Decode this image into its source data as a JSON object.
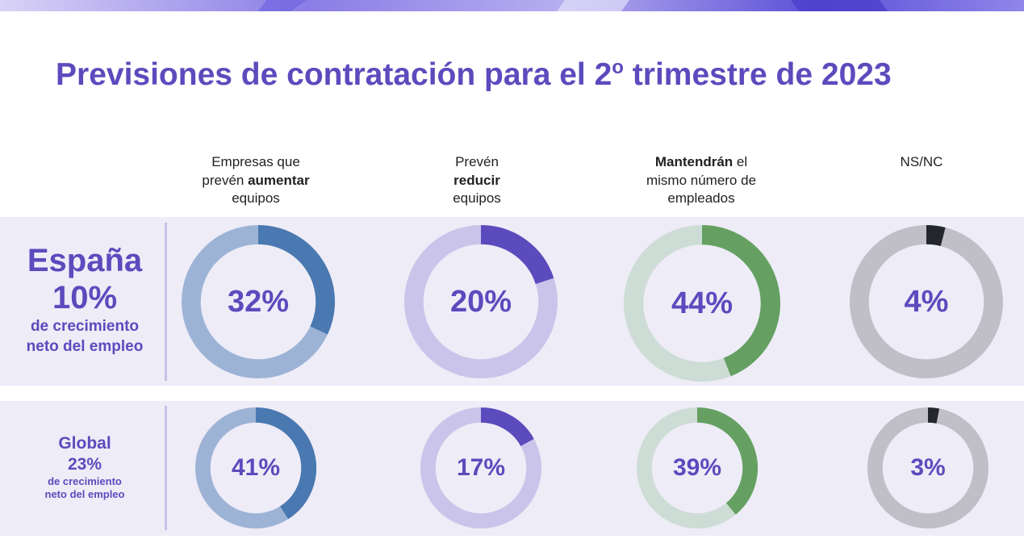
{
  "title": "Previsiones de contratación para el 2",
  "title_sup": "o",
  "title_tail": " trimestre de 2023",
  "columns": [
    {
      "pre": "Empresas que",
      "pre2": "prevén ",
      "bold": "aumentar",
      "post": "equipos"
    },
    {
      "pre": "Prevén",
      "bold": "reducir",
      "post": "equipos"
    },
    {
      "bold": "Mantendrán",
      "pre": " el",
      "line2": "mismo número de",
      "line3": "empleados"
    },
    {
      "label": "NS/NC"
    }
  ],
  "colors": {
    "accent": "#5b4bbd",
    "increase": "#4a78b0",
    "increase_track": "#9db3d6",
    "reduce": "#5b4bbd",
    "reduce_track": "#cbc4ea",
    "maintain": "#65a062",
    "maintain_track": "#cddcd5",
    "nsnc": "#23262d",
    "nsnc_track": "#c0bec6"
  },
  "spain": {
    "name": "España",
    "growth": "10%",
    "desc_line1": "de crecimiento",
    "desc_line2": "neto del empleo"
  },
  "global": {
    "name": "Global",
    "growth": "23%",
    "desc_line1": "de crecimiento",
    "desc_line2": "neto del empleo"
  },
  "chart_data": [
    {
      "type": "pie",
      "title": "España",
      "categories": [
        "Empresas que prevén aumentar equipos",
        "Prevén reducir equipos",
        "Mantendrán el mismo número de empleados",
        "NS/NC"
      ],
      "values": [
        32,
        20,
        44,
        4
      ],
      "labels": [
        "32%",
        "20%",
        "44%",
        "4%"
      ]
    },
    {
      "type": "pie",
      "title": "Global",
      "categories": [
        "Empresas que prevén aumentar equipos",
        "Prevén reducir equipos",
        "Mantendrán el mismo número de empleados",
        "NS/NC"
      ],
      "values": [
        41,
        17,
        39,
        3
      ],
      "labels": [
        "41%",
        "17%",
        "39%",
        "3%"
      ]
    }
  ]
}
